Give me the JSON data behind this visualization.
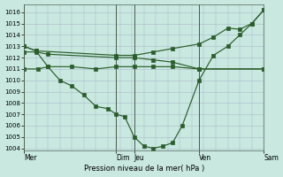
{
  "xlabel": "Pression niveau de la mer( hPa )",
  "ylim": [
    1003.8,
    1016.7
  ],
  "yticks": [
    1004,
    1005,
    1006,
    1007,
    1008,
    1009,
    1010,
    1011,
    1012,
    1013,
    1014,
    1015,
    1016
  ],
  "background_color": "#c8e8e0",
  "grid_color": "#b0b8cc",
  "line_color": "#2a5e2a",
  "vline_color": "#4a5a4a",
  "day_labels": [
    "Mer",
    "Dim",
    "Jeu",
    "Ven",
    "Sam"
  ],
  "day_positions": [
    0.0,
    0.385,
    0.46,
    0.73,
    1.0
  ],
  "xlim": [
    0,
    1.0
  ],
  "lines": [
    {
      "x": [
        0.0,
        0.05,
        0.385,
        0.46,
        0.54,
        0.62,
        0.73,
        0.79,
        0.85,
        0.9,
        0.95,
        1.0
      ],
      "y": [
        1013.0,
        1012.6,
        1012.2,
        1012.2,
        1012.5,
        1012.8,
        1013.2,
        1013.8,
        1014.6,
        1014.5,
        1015.0,
        1016.2
      ]
    },
    {
      "x": [
        0.0,
        0.05,
        0.1,
        0.385,
        0.46,
        0.54,
        0.62,
        0.73,
        1.0
      ],
      "y": [
        1012.5,
        1012.5,
        1012.3,
        1012.0,
        1012.0,
        1011.8,
        1011.6,
        1011.0,
        1011.0
      ]
    },
    {
      "x": [
        0.0,
        0.06,
        0.1,
        0.2,
        0.3,
        0.385,
        0.46,
        0.54,
        0.62,
        0.73,
        1.0
      ],
      "y": [
        1011.0,
        1011.0,
        1011.2,
        1011.2,
        1011.0,
        1011.2,
        1011.2,
        1011.2,
        1011.2,
        1011.0,
        1011.0
      ]
    },
    {
      "x": [
        0.0,
        0.05,
        0.1,
        0.15,
        0.2,
        0.25,
        0.3,
        0.35,
        0.385,
        0.42,
        0.46,
        0.5,
        0.54,
        0.58,
        0.62,
        0.66,
        0.73,
        0.79,
        0.85,
        0.9,
        0.95,
        1.0
      ],
      "y": [
        1013.0,
        1012.6,
        1011.2,
        1010.0,
        1009.5,
        1008.7,
        1007.7,
        1007.5,
        1007.0,
        1006.8,
        1005.0,
        1004.2,
        1004.0,
        1004.2,
        1004.5,
        1006.0,
        1010.0,
        1012.2,
        1013.0,
        1014.0,
        1015.0,
        1016.2
      ]
    }
  ]
}
